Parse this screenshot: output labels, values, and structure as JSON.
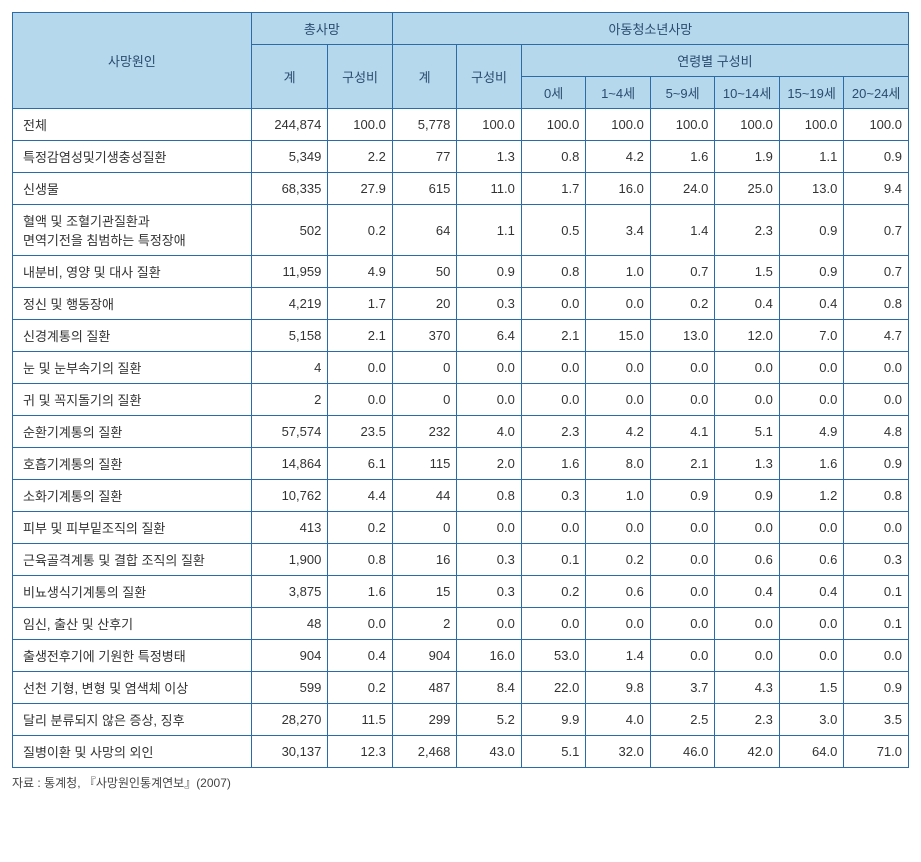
{
  "header": {
    "cause": "사망원인",
    "totalDeath": "총사망",
    "childDeath": "아동청소년사망",
    "count": "계",
    "ratio": "구성비",
    "ageRatio": "연령별 구성비",
    "age0": "0세",
    "age1_4": "1~4세",
    "age5_9": "5~9세",
    "age10_14": "10~14세",
    "age15_19": "15~19세",
    "age20_24": "20~24세"
  },
  "rows": [
    {
      "label": "전체",
      "t": "244,874",
      "tr": "100.0",
      "c": "5,778",
      "cr": "100.0",
      "a0": "100.0",
      "a1": "100.0",
      "a2": "100.0",
      "a3": "100.0",
      "a4": "100.0",
      "a5": "100.0"
    },
    {
      "label": "특정감염성및기생충성질환",
      "t": "5,349",
      "tr": "2.2",
      "c": "77",
      "cr": "1.3",
      "a0": "0.8",
      "a1": "4.2",
      "a2": "1.6",
      "a3": "1.9",
      "a4": "1.1",
      "a5": "0.9"
    },
    {
      "label": "신생물",
      "t": "68,335",
      "tr": "27.9",
      "c": "615",
      "cr": "11.0",
      "a0": "1.7",
      "a1": "16.0",
      "a2": "24.0",
      "a3": "25.0",
      "a4": "13.0",
      "a5": "9.4"
    },
    {
      "label": "혈액 및 조혈기관질환과\n면역기전을 침범하는 특정장애",
      "t": "502",
      "tr": "0.2",
      "c": "64",
      "cr": "1.1",
      "a0": "0.5",
      "a1": "3.4",
      "a2": "1.4",
      "a3": "2.3",
      "a4": "0.9",
      "a5": "0.7"
    },
    {
      "label": "내분비, 영양 및 대사 질환",
      "t": "11,959",
      "tr": "4.9",
      "c": "50",
      "cr": "0.9",
      "a0": "0.8",
      "a1": "1.0",
      "a2": "0.7",
      "a3": "1.5",
      "a4": "0.9",
      "a5": "0.7"
    },
    {
      "label": "정신 및 행동장애",
      "t": "4,219",
      "tr": "1.7",
      "c": "20",
      "cr": "0.3",
      "a0": "0.0",
      "a1": "0.0",
      "a2": "0.2",
      "a3": "0.4",
      "a4": "0.4",
      "a5": "0.8"
    },
    {
      "label": "신경계통의 질환",
      "t": "5,158",
      "tr": "2.1",
      "c": "370",
      "cr": "6.4",
      "a0": "2.1",
      "a1": "15.0",
      "a2": "13.0",
      "a3": "12.0",
      "a4": "7.0",
      "a5": "4.7"
    },
    {
      "label": "눈 및 눈부속기의 질환",
      "t": "4",
      "tr": "0.0",
      "c": "0",
      "cr": "0.0",
      "a0": "0.0",
      "a1": "0.0",
      "a2": "0.0",
      "a3": "0.0",
      "a4": "0.0",
      "a5": "0.0"
    },
    {
      "label": "귀 및 꼭지돌기의 질환",
      "t": "2",
      "tr": "0.0",
      "c": "0",
      "cr": "0.0",
      "a0": "0.0",
      "a1": "0.0",
      "a2": "0.0",
      "a3": "0.0",
      "a4": "0.0",
      "a5": "0.0"
    },
    {
      "label": "순환기계통의 질환",
      "t": "57,574",
      "tr": "23.5",
      "c": "232",
      "cr": "4.0",
      "a0": "2.3",
      "a1": "4.2",
      "a2": "4.1",
      "a3": "5.1",
      "a4": "4.9",
      "a5": "4.8"
    },
    {
      "label": "호흡기계통의 질환",
      "t": "14,864",
      "tr": "6.1",
      "c": "115",
      "cr": "2.0",
      "a0": "1.6",
      "a1": "8.0",
      "a2": "2.1",
      "a3": "1.3",
      "a4": "1.6",
      "a5": "0.9"
    },
    {
      "label": "소화기계통의 질환",
      "t": "10,762",
      "tr": "4.4",
      "c": "44",
      "cr": "0.8",
      "a0": "0.3",
      "a1": "1.0",
      "a2": "0.9",
      "a3": "0.9",
      "a4": "1.2",
      "a5": "0.8"
    },
    {
      "label": "피부 및 피부밑조직의 질환",
      "t": "413",
      "tr": "0.2",
      "c": "0",
      "cr": "0.0",
      "a0": "0.0",
      "a1": "0.0",
      "a2": "0.0",
      "a3": "0.0",
      "a4": "0.0",
      "a5": "0.0"
    },
    {
      "label": "근육골격계통 및 결합 조직의 질환",
      "t": "1,900",
      "tr": "0.8",
      "c": "16",
      "cr": "0.3",
      "a0": "0.1",
      "a1": "0.2",
      "a2": "0.0",
      "a3": "0.6",
      "a4": "0.6",
      "a5": "0.3"
    },
    {
      "label": "비뇨생식기계통의 질환",
      "t": "3,875",
      "tr": "1.6",
      "c": "15",
      "cr": "0.3",
      "a0": "0.2",
      "a1": "0.6",
      "a2": "0.0",
      "a3": "0.4",
      "a4": "0.4",
      "a5": "0.1"
    },
    {
      "label": "임신, 출산 및 산후기",
      "t": "48",
      "tr": "0.0",
      "c": "2",
      "cr": "0.0",
      "a0": "0.0",
      "a1": "0.0",
      "a2": "0.0",
      "a3": "0.0",
      "a4": "0.0",
      "a5": "0.1"
    },
    {
      "label": "출생전후기에 기원한 특정병태",
      "t": "904",
      "tr": "0.4",
      "c": "904",
      "cr": "16.0",
      "a0": "53.0",
      "a1": "1.4",
      "a2": "0.0",
      "a3": "0.0",
      "a4": "0.0",
      "a5": "0.0"
    },
    {
      "label": "선천 기형, 변형 및 염색체 이상",
      "t": "599",
      "tr": "0.2",
      "c": "487",
      "cr": "8.4",
      "a0": "22.0",
      "a1": "9.8",
      "a2": "3.7",
      "a3": "4.3",
      "a4": "1.5",
      "a5": "0.9"
    },
    {
      "label": "달리 분류되지 않은 증상, 징후",
      "t": "28,270",
      "tr": "11.5",
      "c": "299",
      "cr": "5.2",
      "a0": "9.9",
      "a1": "4.0",
      "a2": "2.5",
      "a3": "2.3",
      "a4": "3.0",
      "a5": "3.5"
    },
    {
      "label": "질병이환 및 사망의 외인",
      "t": "30,137",
      "tr": "12.3",
      "c": "2,468",
      "cr": "43.0",
      "a0": "5.1",
      "a1": "32.0",
      "a2": "46.0",
      "a3": "42.0",
      "a4": "64.0",
      "a5": "71.0"
    }
  ],
  "source": "자료 : 통계청, 『사망원인통계연보』(2007)"
}
